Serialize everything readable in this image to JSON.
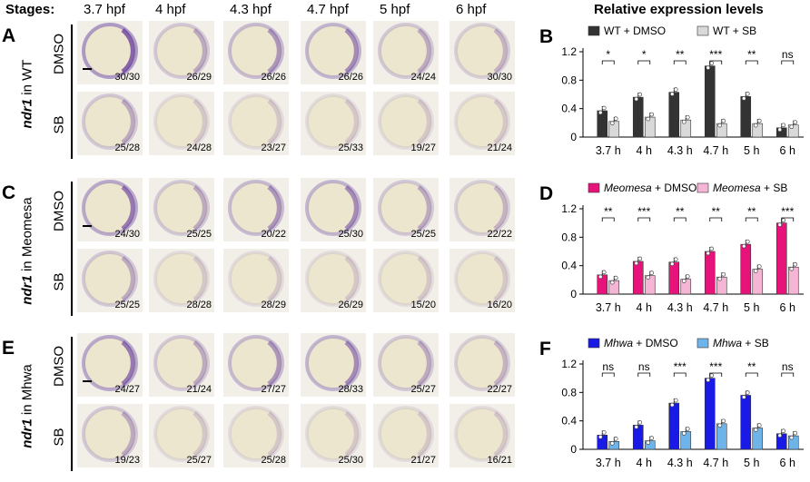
{
  "header": {
    "stages_label": "Stages:",
    "stages": [
      "3.7 hpf",
      "4 hpf",
      "4.3 hpf",
      "4.7 hpf",
      "5 hpf",
      "6 hpf"
    ],
    "chart_title": "Relative expression levels"
  },
  "left_panels": [
    {
      "letter": "A",
      "side_gene": "ndr1",
      "side_suffix": " in WT",
      "rows": [
        {
          "label": "DMSO",
          "counts": [
            "30/30",
            "26/29",
            "26/26",
            "26/26",
            "24/24",
            "30/30"
          ]
        },
        {
          "label": "SB",
          "counts": [
            "25/28",
            "24/28",
            "23/27",
            "25/33",
            "19/27",
            "21/24"
          ]
        }
      ]
    },
    {
      "letter": "C",
      "side_gene": "ndr1",
      "side_suffix": " in Meomesa",
      "rows": [
        {
          "label": "DMSO",
          "counts": [
            "24/30",
            "25/25",
            "20/22",
            "25/30",
            "25/25",
            "22/22"
          ]
        },
        {
          "label": "SB",
          "counts": [
            "25/25",
            "28/28",
            "28/29",
            "26/29",
            "15/20",
            "16/20"
          ]
        }
      ]
    },
    {
      "letter": "E",
      "side_gene": "ndr1",
      "side_suffix": " in Mhwa",
      "rows": [
        {
          "label": "DMSO",
          "counts": [
            "24/27",
            "21/24",
            "27/27",
            "28/33",
            "25/27",
            "22/27"
          ]
        },
        {
          "label": "SB",
          "counts": [
            "19/23",
            "25/27",
            "25/28",
            "25/30",
            "21/27",
            "16/21"
          ]
        }
      ]
    }
  ],
  "chart_data": [
    {
      "letter": "B",
      "type": "bar",
      "categories": [
        "3.7 h",
        "4 h",
        "4.3 h",
        "4.7 h",
        "5 h",
        "6 h"
      ],
      "legend": [
        {
          "name": "WT + DMSO",
          "italic_part": "",
          "suffix": "WT + DMSO",
          "color": "#333333"
        },
        {
          "name": "WT + SB",
          "italic_part": "",
          "suffix": "WT + SB",
          "color": "#d9d9d9"
        }
      ],
      "series": [
        {
          "name": "WT + DMSO",
          "values": [
            0.37,
            0.56,
            0.63,
            1.0,
            0.57,
            0.13
          ]
        },
        {
          "name": "WT + SB",
          "values": [
            0.22,
            0.28,
            0.24,
            0.19,
            0.19,
            0.17
          ]
        }
      ],
      "significance": [
        "*",
        "*",
        "**",
        "***",
        "**",
        "ns"
      ],
      "yticks": [
        "0",
        "0.4",
        "0.8",
        "1.2"
      ],
      "ylim": [
        0,
        1.2
      ]
    },
    {
      "letter": "D",
      "type": "bar",
      "categories": [
        "3.7 h",
        "4 h",
        "4.3 h",
        "4.7 h",
        "5 h",
        "6 h"
      ],
      "legend": [
        {
          "name": "Meomesa + DMSO",
          "italic_part": "Meomesa",
          "suffix": " + DMSO",
          "color": "#e8137a"
        },
        {
          "name": "Meomesa + SB",
          "italic_part": "Meomesa",
          "suffix": " + SB",
          "color": "#f5b5d4"
        }
      ],
      "series": [
        {
          "name": "Meomesa + DMSO",
          "values": [
            0.27,
            0.46,
            0.45,
            0.6,
            0.7,
            1.0
          ]
        },
        {
          "name": "Meomesa + SB",
          "values": [
            0.19,
            0.26,
            0.21,
            0.24,
            0.35,
            0.38
          ]
        }
      ],
      "significance": [
        "**",
        "***",
        "**",
        "**",
        "**",
        "***"
      ],
      "yticks": [
        "0",
        "0.4",
        "0.8",
        "1.2"
      ],
      "ylim": [
        0,
        1.2
      ]
    },
    {
      "letter": "F",
      "type": "bar",
      "categories": [
        "3.7 h",
        "4 h",
        "4.3 h",
        "4.7 h",
        "5 h",
        "6 h"
      ],
      "legend": [
        {
          "name": "Mhwa + DMSO",
          "italic_part": "Mhwa",
          "suffix": " + DMSO",
          "color": "#1a1ae6"
        },
        {
          "name": "Mhwa + SB",
          "italic_part": "Mhwa",
          "suffix": " + SB",
          "color": "#6fb4e8"
        }
      ],
      "series": [
        {
          "name": "Mhwa + DMSO",
          "values": [
            0.2,
            0.34,
            0.65,
            1.0,
            0.76,
            0.22
          ]
        },
        {
          "name": "Mhwa + SB",
          "values": [
            0.11,
            0.12,
            0.25,
            0.36,
            0.3,
            0.19
          ]
        }
      ],
      "significance": [
        "ns",
        "ns",
        "***",
        "***",
        "**",
        "ns"
      ],
      "yticks": [
        "0",
        "0.4",
        "0.8",
        "1.2"
      ],
      "ylim": [
        0,
        1.2
      ]
    }
  ]
}
